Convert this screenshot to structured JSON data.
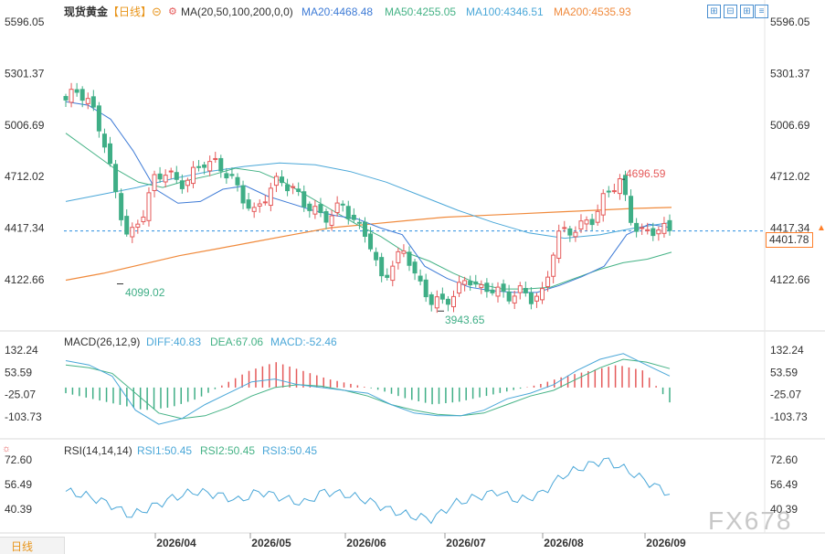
{
  "header": {
    "title": "现货黄金",
    "period": "【日线】",
    "ma_label": "MA(20,50,100,200,0,0)",
    "ma20": "MA20:4468.48",
    "ma50": "MA50:4255.05",
    "ma100": "MA100:4346.51",
    "ma200": "MA200:4535.93"
  },
  "colors": {
    "up": "#e55a5a",
    "down": "#3fae86",
    "ma20": "#3e7bd6",
    "ma50": "#44b285",
    "ma100": "#4aa7d8",
    "ma200": "#f08a3c",
    "price_line": "#2d8fe0",
    "label_bg": "#ff7f2a"
  },
  "icons": [
    "eye-off-icon",
    "settings-icon",
    "zoom-in-icon",
    "zoom-out-icon",
    "expand-icon",
    "more-icon"
  ],
  "price_axis": [
    "5596.05",
    "5301.37",
    "5006.69",
    "4712.02",
    "4417.34",
    "4122.66"
  ],
  "current_price": "4401.78",
  "annotations": {
    "high": "4696.59",
    "low1": "4099.02",
    "low2": "3943.65"
  },
  "macd": {
    "label": "MACD(26,12,9)",
    "diff": "DIFF:40.83",
    "dea": "DEA:67.06",
    "macd": "MACD:-52.46",
    "axis": [
      "132.24",
      "53.59",
      "-25.07",
      "-103.73"
    ]
  },
  "rsi": {
    "label": "RSI(14,14,14)",
    "rsi1": "RSI1:50.45",
    "rsi2": "RSI2:50.45",
    "rsi3": "RSI3:50.45",
    "axis": [
      "72.60",
      "56.49",
      "40.39"
    ]
  },
  "x_axis": [
    "2026/04",
    "2026/05",
    "2026/06",
    "2026/07",
    "2026/08",
    "2026/09"
  ],
  "bottom_tab": "日线",
  "watermark": "FX678",
  "chart_data": {
    "type": "candlestick",
    "title": "现货黄金 【日线】",
    "x": [
      "2026/04",
      "2026/05",
      "2026/06",
      "2026/07",
      "2026/08",
      "2026/09"
    ],
    "ylim": [
      3943.65,
      5596.05
    ],
    "price_close_path": [
      5150,
      5210,
      5120,
      4930,
      4600,
      4350,
      4480,
      4690,
      4750,
      4660,
      4720,
      4800,
      4780,
      4720,
      4600,
      4500,
      4620,
      4700,
      4640,
      4560,
      4500,
      4480,
      4560,
      4440,
      4380,
      4120,
      4210,
      4300,
      4100,
      4010,
      3990,
      4050,
      4140,
      4060,
      4080,
      4020,
      4060,
      4020,
      4040,
      4380,
      4400,
      4430,
      4480,
      4620,
      4696.59,
      4450,
      4380,
      4420,
      4401.78
    ],
    "ma20_path": [
      5140,
      5120,
      5040,
      4860,
      4640,
      4560,
      4570,
      4640,
      4660,
      4600,
      4560,
      4520,
      4490,
      4470,
      4420,
      4380,
      4200,
      4130,
      4080,
      4060,
      4050,
      4050,
      4090,
      4140,
      4200,
      4380,
      4440,
      4420
    ],
    "ma50_path": [
      4960,
      4860,
      4760,
      4680,
      4650,
      4690,
      4720,
      4760,
      4740,
      4680,
      4600,
      4520,
      4440,
      4370,
      4280,
      4230,
      4160,
      4100,
      4070,
      4070,
      4080,
      4130,
      4180,
      4220,
      4240,
      4280
    ],
    "ma100_path": [
      4570,
      4610,
      4650,
      4700,
      4740,
      4770,
      4790,
      4780,
      4740,
      4680,
      4600,
      4520,
      4450,
      4390,
      4360,
      4380,
      4420,
      4450
    ],
    "ma200_path": [
      4120,
      4160,
      4210,
      4260,
      4300,
      4340,
      4380,
      4420,
      4440,
      4460,
      4480,
      4490,
      4500,
      4510,
      4520,
      4530,
      4535.93
    ],
    "macd_diff_path": [
      95,
      80,
      40,
      -80,
      -130,
      -110,
      -60,
      -20,
      20,
      30,
      10,
      0,
      -10,
      -20,
      -60,
      -90,
      -100,
      -100,
      -80,
      -40,
      -20,
      10,
      60,
      100,
      120,
      80,
      40.83
    ],
    "macd_dea_path": [
      80,
      70,
      50,
      -20,
      -90,
      -110,
      -100,
      -70,
      -30,
      0,
      10,
      5,
      -10,
      -30,
      -60,
      -80,
      -95,
      -100,
      -90,
      -60,
      -30,
      -10,
      30,
      70,
      100,
      90,
      67.06
    ],
    "macd_hist": [
      -20,
      -40,
      -60,
      -80,
      -70,
      -40,
      10,
      60,
      90,
      60,
      30,
      10,
      -10,
      -40,
      -60,
      -50,
      -30,
      -10,
      10,
      40,
      60,
      80,
      60,
      -52.46
    ],
    "rsi_path": [
      52,
      49,
      44,
      36,
      42,
      48,
      52,
      50,
      46,
      52,
      48,
      44,
      52,
      50,
      46,
      40,
      36,
      34,
      44,
      48,
      52,
      46,
      50,
      62,
      68,
      72.6,
      66,
      58,
      50.45
    ]
  }
}
